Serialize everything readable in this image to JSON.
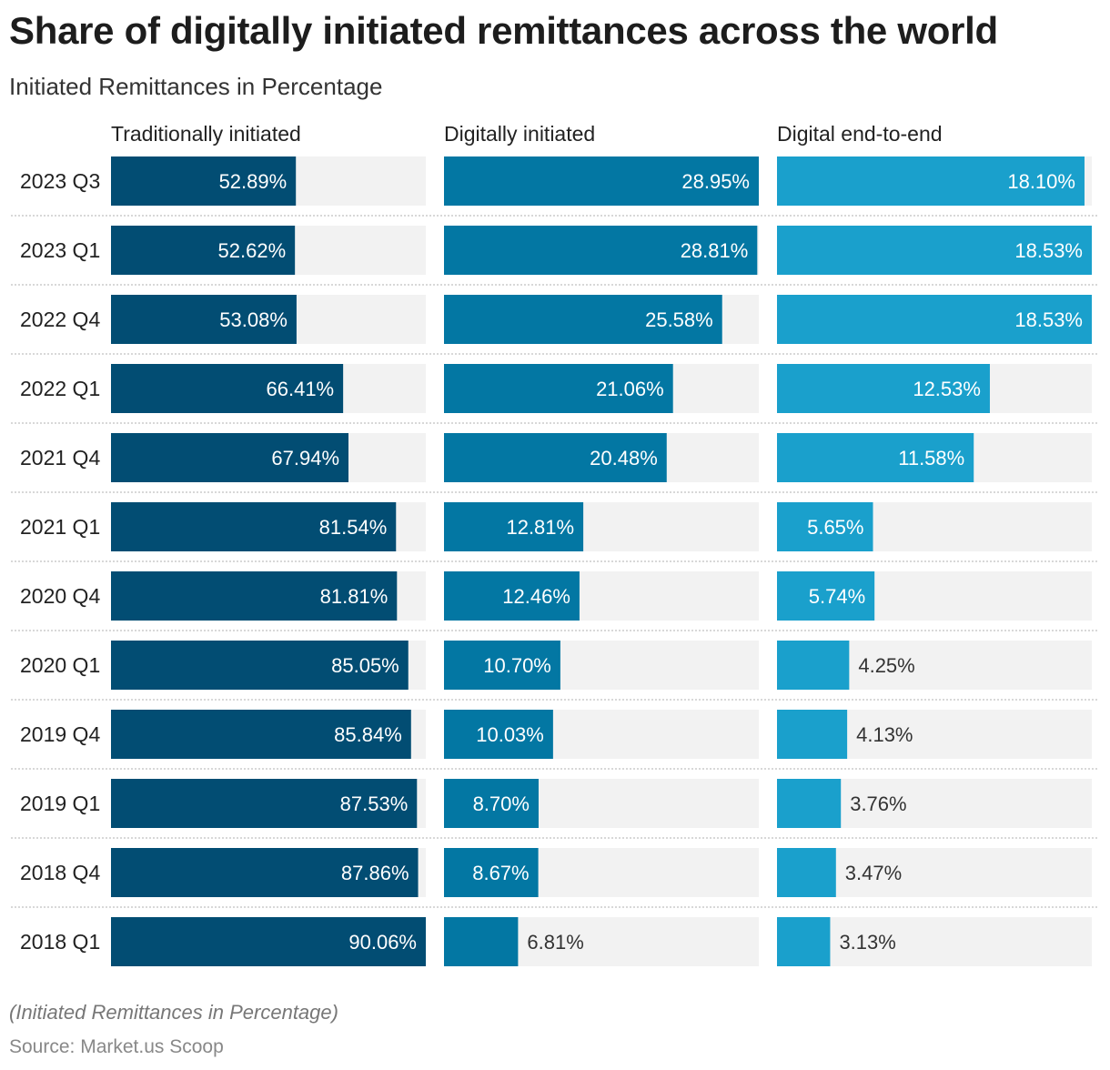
{
  "title": "Share of digitally initiated remittances across the world",
  "subtitle": "Initiated Remittances in Percentage",
  "footer_note": "(Initiated Remittances in Percentage)",
  "source": "Source: Market.us Scoop",
  "colors": {
    "Traditionally initiated": "#024d73",
    "Digitally initiated": "#0377a3",
    "Digital end-to-end": "#1aa0cc",
    "background_bar": "#f2f2f2"
  },
  "chart_data": {
    "type": "bar",
    "orientation": "horizontal",
    "layout": "split-bars",
    "categories": [
      "2023 Q3",
      "2023 Q1",
      "2022 Q4",
      "2022 Q1",
      "2021 Q4",
      "2021 Q1",
      "2020 Q4",
      "2020 Q1",
      "2019 Q4",
      "2019 Q1",
      "2018 Q4",
      "2018 Q1"
    ],
    "series": [
      {
        "name": "Traditionally initiated",
        "values": [
          52.89,
          52.62,
          53.08,
          66.41,
          67.94,
          81.54,
          81.81,
          85.05,
          85.84,
          87.53,
          87.86,
          90.06
        ]
      },
      {
        "name": "Digitally initiated",
        "values": [
          28.95,
          28.81,
          25.58,
          21.06,
          20.48,
          12.81,
          12.46,
          10.7,
          10.03,
          8.7,
          8.67,
          6.81
        ]
      },
      {
        "name": "Digital end-to-end",
        "values": [
          18.1,
          18.53,
          18.53,
          12.53,
          11.58,
          5.65,
          5.74,
          4.25,
          4.13,
          3.76,
          3.47,
          3.13
        ]
      }
    ],
    "value_suffix": "%",
    "grid": false
  }
}
